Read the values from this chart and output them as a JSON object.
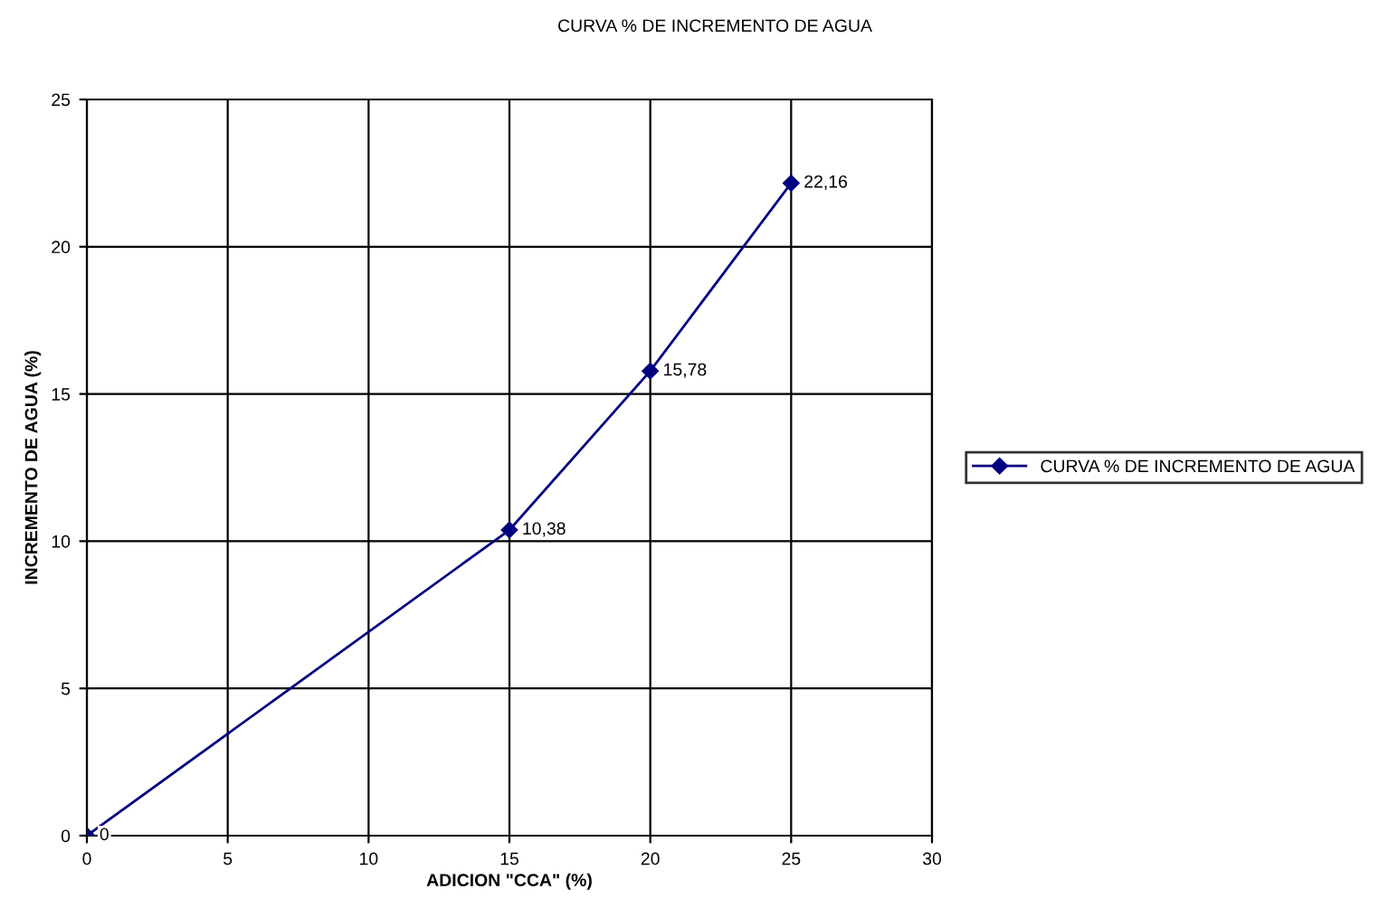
{
  "chart_data": {
    "type": "line",
    "title": "CURVA % DE INCREMENTO DE AGUA",
    "xlabel": "ADICION \"CCA\" (%)",
    "ylabel": "INCREMENTO DE AGUA (%)",
    "x": [
      0,
      15,
      20,
      25
    ],
    "series": [
      {
        "name": "CURVA % DE INCREMENTO DE AGUA",
        "color": "#000080",
        "values": [
          0,
          10.38,
          15.78,
          22.16
        ],
        "value_labels": [
          "0",
          "10,38",
          "15,78",
          "22,16"
        ]
      }
    ],
    "xlim": [
      0,
      30
    ],
    "xticks": [
      0,
      5,
      10,
      15,
      20,
      25,
      30
    ],
    "ylim": [
      0,
      25
    ],
    "yticks": [
      0,
      5,
      10,
      15,
      20,
      25
    ],
    "grid": true,
    "legend": "right",
    "marker": "diamond",
    "line_style": "solid"
  }
}
